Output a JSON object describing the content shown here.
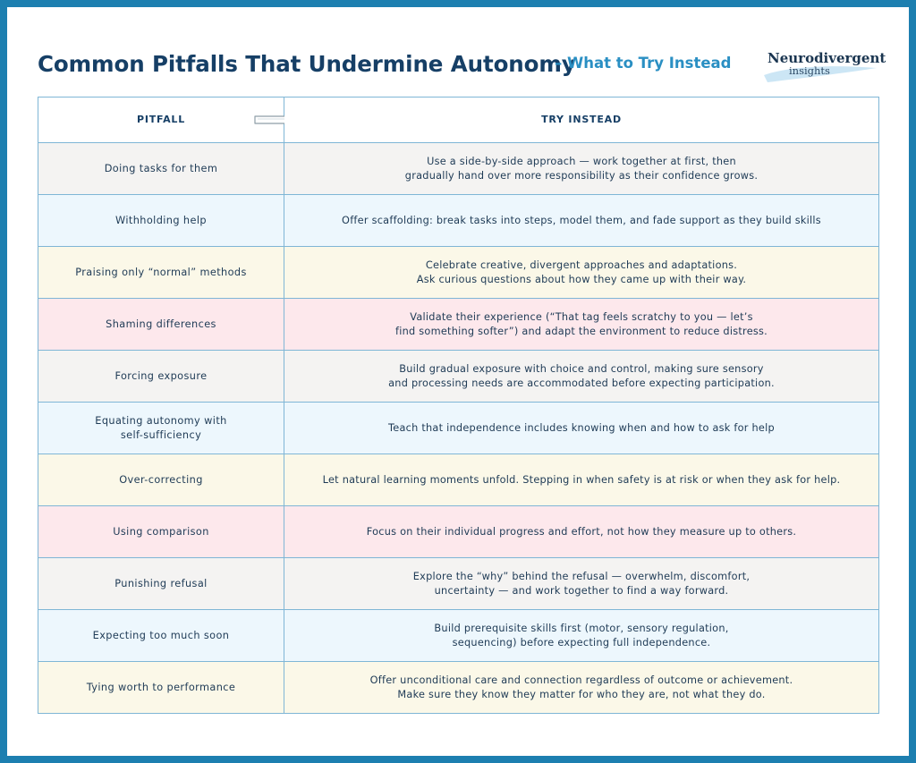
{
  "header": {
    "title": "Common Pitfalls That Undermine Autonomy",
    "subtitle": "– What to Try Instead",
    "logo_top": "Neurodivergent",
    "logo_bottom": "insights"
  },
  "table": {
    "col_pitfall": "PITFALL",
    "col_try": "TRY INSTEAD",
    "rows": [
      {
        "pitfall": [
          "Doing tasks for them"
        ],
        "try": [
          "Use a side-by-side approach — work together at first, then",
          "gradually hand over more responsibility as their confidence grows."
        ],
        "tint": "grey"
      },
      {
        "pitfall": [
          "Withholding help"
        ],
        "try": [
          "Offer scaffolding: break tasks into steps, model them, and fade support as they build skills"
        ],
        "tint": "blue"
      },
      {
        "pitfall": [
          "Praising only “normal” methods"
        ],
        "try": [
          "Celebrate creative, divergent approaches and adaptations.",
          "Ask curious questions about how they came up with their way."
        ],
        "tint": "cream"
      },
      {
        "pitfall": [
          "Shaming differences"
        ],
        "try": [
          "Validate their experience (“That tag feels scratchy to you — let’s",
          "find something softer”) and adapt the environment to reduce distress."
        ],
        "tint": "pink"
      },
      {
        "pitfall": [
          "Forcing exposure"
        ],
        "try": [
          "Build gradual exposure with choice and control, making sure sensory",
          "and processing needs are accommodated before expecting participation."
        ],
        "tint": "grey"
      },
      {
        "pitfall": [
          "Equating autonomy with",
          "self-sufficiency"
        ],
        "try": [
          "Teach that independence includes knowing when and how to ask for help"
        ],
        "tint": "blue"
      },
      {
        "pitfall": [
          "Over-correcting"
        ],
        "try": [
          "Let natural learning moments unfold. Stepping in when safety is at risk or when they ask for help."
        ],
        "tint": "cream"
      },
      {
        "pitfall": [
          "Using comparison"
        ],
        "try": [
          "Focus on their individual progress and effort, not how they measure up to others."
        ],
        "tint": "pink"
      },
      {
        "pitfall": [
          "Punishing refusal"
        ],
        "try": [
          "Explore the “why” behind the refusal — overwhelm, discomfort,",
          "uncertainty — and work together to find a way forward."
        ],
        "tint": "grey"
      },
      {
        "pitfall": [
          "Expecting too much soon"
        ],
        "try": [
          "Build prerequisite skills first (motor, sensory regulation,",
          "sequencing) before expecting full independence."
        ],
        "tint": "blue"
      },
      {
        "pitfall": [
          "Tying worth to performance"
        ],
        "try": [
          "Offer unconditional care and connection regardless of outcome or achievement.",
          "Make sure they know they matter for who they are, not what they do."
        ],
        "tint": "cream"
      }
    ]
  }
}
